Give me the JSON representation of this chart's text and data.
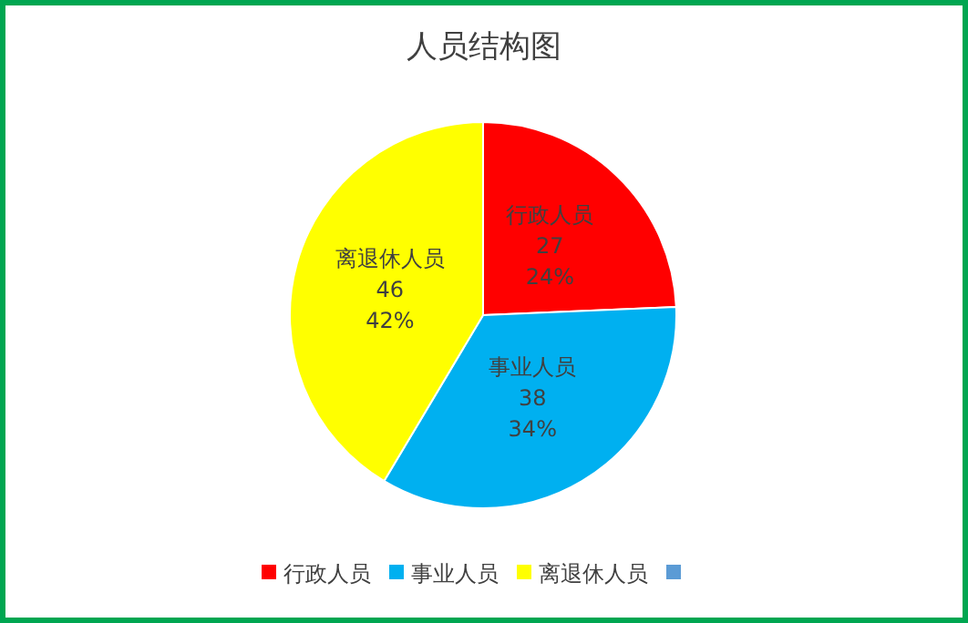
{
  "chart_data": {
    "type": "pie",
    "title": "人员结构图",
    "categories": [
      "行政人员",
      "事业人员",
      "离退休人员",
      null
    ],
    "values": [
      27,
      38,
      46,
      0
    ],
    "colors": [
      "#ff0000",
      "#00b0f0",
      "#ffff00",
      "#5b9bd5"
    ],
    "value_labels": [
      "27\n24%",
      "38\n34%",
      "46\n42%",
      null
    ],
    "legend": "bottom"
  }
}
